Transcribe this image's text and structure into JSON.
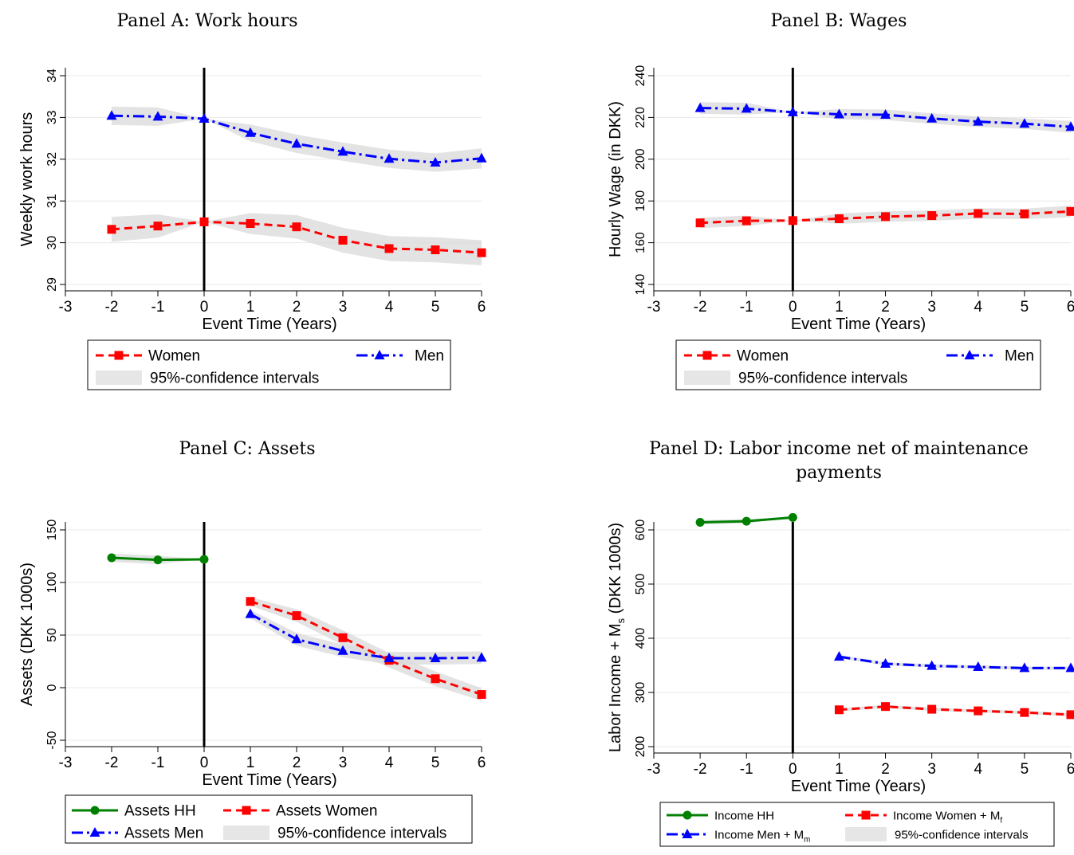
{
  "chart_data": [
    {
      "type": "line",
      "title": "Panel A: Work hours",
      "xlabel": "Event Time (Years)",
      "ylabel": "Weekly work hours",
      "xlim": [
        -3,
        6
      ],
      "ylim": [
        29,
        34
      ],
      "xticks": [
        -3,
        -2,
        -1,
        0,
        1,
        2,
        3,
        4,
        5,
        6
      ],
      "yticks": [
        29,
        30,
        31,
        32,
        33,
        34
      ],
      "event_line_x": 0,
      "grid": true,
      "series": [
        {
          "name": "Women",
          "color": "#ff0000",
          "marker": "square",
          "dash": "dash",
          "x": [
            -2,
            -1,
            0,
            1,
            2,
            3,
            4,
            5,
            6
          ],
          "y": [
            30.32,
            30.4,
            30.5,
            30.46,
            30.38,
            30.06,
            29.86,
            29.83,
            29.76
          ],
          "ci": [
            0.3,
            0.28,
            0.0,
            0.25,
            0.28,
            0.3,
            0.3,
            0.3,
            0.3
          ]
        },
        {
          "name": "Men",
          "color": "#0000ff",
          "marker": "triangle",
          "dash": "dashdot",
          "x": [
            -2,
            -1,
            0,
            1,
            2,
            3,
            4,
            5,
            6
          ],
          "y": [
            33.04,
            33.02,
            32.97,
            32.63,
            32.37,
            32.18,
            32.01,
            31.92,
            32.02
          ],
          "ci": [
            0.22,
            0.22,
            0.0,
            0.2,
            0.22,
            0.22,
            0.22,
            0.22,
            0.24
          ]
        }
      ],
      "legend": [
        {
          "label": "Women",
          "kind": "line",
          "color": "#ff0000",
          "marker": "square",
          "dash": "dash"
        },
        {
          "label": "Men",
          "kind": "line",
          "color": "#0000ff",
          "marker": "triangle",
          "dash": "dashdot"
        },
        {
          "label": "95%-confidence intervals",
          "kind": "band"
        }
      ]
    },
    {
      "type": "line",
      "title": "Panel B: Wages",
      "xlabel": "Event Time (Years)",
      "ylabel": "Hourly Wage (in DKK)",
      "xlim": [
        -3,
        6
      ],
      "ylim": [
        140,
        240
      ],
      "xticks": [
        -3,
        -2,
        -1,
        0,
        1,
        2,
        3,
        4,
        5,
        6
      ],
      "yticks": [
        140,
        160,
        180,
        200,
        220,
        240
      ],
      "event_line_x": 0,
      "grid": true,
      "series": [
        {
          "name": "Women",
          "color": "#ff0000",
          "marker": "square",
          "dash": "dash",
          "x": [
            -2,
            -1,
            0,
            1,
            2,
            3,
            4,
            5,
            6
          ],
          "y": [
            169.5,
            170.5,
            170.6,
            171.5,
            172.5,
            173,
            174,
            173.8,
            175
          ],
          "ci": [
            2.5,
            2.5,
            0,
            2.5,
            2.5,
            2.5,
            2.5,
            2.5,
            2.8
          ]
        },
        {
          "name": "Men",
          "color": "#0000ff",
          "marker": "triangle",
          "dash": "dashdot",
          "x": [
            -2,
            -1,
            0,
            1,
            2,
            3,
            4,
            5,
            6
          ],
          "y": [
            224.5,
            224.2,
            222.5,
            221.5,
            221.3,
            219.5,
            218,
            217,
            215.5
          ],
          "ci": [
            2.8,
            2.8,
            0,
            2.5,
            2.5,
            2.5,
            2.5,
            2.5,
            2.8
          ]
        }
      ],
      "legend": [
        {
          "label": "Women",
          "kind": "line",
          "color": "#ff0000",
          "marker": "square",
          "dash": "dash"
        },
        {
          "label": "Men",
          "kind": "line",
          "color": "#0000ff",
          "marker": "triangle",
          "dash": "dashdot"
        },
        {
          "label": "95%-confidence intervals",
          "kind": "band"
        }
      ]
    },
    {
      "type": "line",
      "title": "Panel C: Assets",
      "xlabel": "Event Time (Years)",
      "ylabel": "Assets (DKK 1000s)",
      "xlim": [
        -3,
        6
      ],
      "ylim": [
        -50,
        150
      ],
      "xticks": [
        -3,
        -2,
        -1,
        0,
        1,
        2,
        3,
        4,
        5,
        6
      ],
      "yticks": [
        -50,
        0,
        50,
        100,
        150
      ],
      "event_line_x": 0,
      "grid": true,
      "series": [
        {
          "name": "Assets HH",
          "color": "#008000",
          "marker": "circle",
          "dash": "solid",
          "x": [
            -2,
            -1,
            0
          ],
          "y": [
            123.5,
            121.5,
            122
          ],
          "ci": [
            4,
            4,
            0
          ]
        },
        {
          "name": "Assets Women",
          "color": "#ff0000",
          "marker": "square",
          "dash": "dash",
          "x": [
            1,
            2,
            3,
            4,
            5,
            6
          ],
          "y": [
            82,
            68.5,
            47.5,
            26,
            8.5,
            -6.5
          ],
          "ci": [
            4,
            6,
            7,
            7,
            7,
            6
          ]
        },
        {
          "name": "Assets Men",
          "color": "#0000ff",
          "marker": "triangle",
          "dash": "dashdot",
          "x": [
            1,
            2,
            3,
            4,
            5,
            6
          ],
          "y": [
            70,
            46,
            35,
            28,
            28,
            28.5
          ],
          "ci": [
            4,
            6,
            6,
            6,
            6,
            6
          ]
        }
      ],
      "legend": [
        {
          "label": "Assets HH",
          "kind": "line",
          "color": "#008000",
          "marker": "circle",
          "dash": "solid"
        },
        {
          "label": "Assets Women",
          "kind": "line",
          "color": "#ff0000",
          "marker": "square",
          "dash": "dash"
        },
        {
          "label": "Assets Men",
          "kind": "line",
          "color": "#0000ff",
          "marker": "triangle",
          "dash": "dashdot"
        },
        {
          "label": "95%-confidence intervals",
          "kind": "band"
        }
      ]
    },
    {
      "type": "line",
      "title": "Panel D: Labor income net of maintenance payments",
      "title_lines": [
        "Panel D: Labor income net of maintenance",
        "payments"
      ],
      "xlabel": "Event Time (Years)",
      "ylabel": "Labor Income + Ms (DKK 1000s)",
      "ylabel_parts": [
        "Labor Income + M",
        "s",
        " (DKK 1000s)"
      ],
      "xlim": [
        -3,
        6
      ],
      "ylim": [
        200,
        600
      ],
      "xticks": [
        -3,
        -2,
        -1,
        0,
        1,
        2,
        3,
        4,
        5,
        6
      ],
      "yticks": [
        200,
        300,
        400,
        500,
        600
      ],
      "event_line_x": 0,
      "grid": true,
      "series": [
        {
          "name": "Income HH",
          "color": "#008000",
          "marker": "circle",
          "dash": "solid",
          "x": [
            -2,
            -1,
            0
          ],
          "y": [
            614,
            616,
            623
          ],
          "ci": [
            4,
            4,
            0
          ]
        },
        {
          "name": "Income Women + Mf",
          "color": "#ff0000",
          "marker": "square",
          "dash": "dash",
          "x": [
            1,
            2,
            3,
            4,
            5,
            6
          ],
          "y": [
            268,
            274,
            269,
            266,
            263,
            259
          ],
          "ci": [
            3,
            3,
            3,
            3,
            3,
            3
          ]
        },
        {
          "name": "Income Men + Mm",
          "color": "#0000ff",
          "marker": "triangle",
          "dash": "dashdot",
          "x": [
            1,
            2,
            3,
            4,
            5,
            6
          ],
          "y": [
            366,
            353,
            349,
            347,
            345,
            345
          ],
          "ci": [
            3,
            3,
            3,
            3,
            3,
            3
          ]
        }
      ],
      "legend": [
        {
          "label": "Income HH",
          "kind": "line",
          "color": "#008000",
          "marker": "circle",
          "dash": "solid"
        },
        {
          "label": "Income Women + M",
          "sub": "f",
          "kind": "line",
          "color": "#ff0000",
          "marker": "square",
          "dash": "dash"
        },
        {
          "label": "Income Men + M",
          "sub": "m",
          "kind": "line",
          "color": "#0000ff",
          "marker": "triangle",
          "dash": "dashdot"
        },
        {
          "label": "95%-confidence intervals",
          "kind": "band"
        }
      ]
    }
  ]
}
